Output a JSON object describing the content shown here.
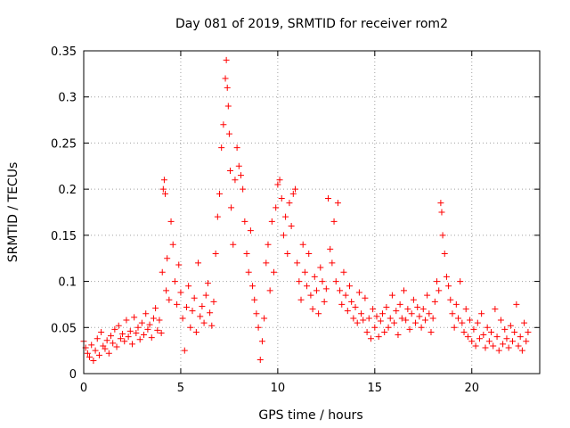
{
  "chart_data": {
    "type": "scatter",
    "title": "Day 081 of 2019, SRMTID for receiver rom2",
    "xlabel": "GPS time / hours",
    "ylabel": "SRMTID / TECUs",
    "xlim": [
      0,
      23.5
    ],
    "ylim": [
      0,
      0.35
    ],
    "xticks": [
      0,
      5,
      10,
      15,
      20
    ],
    "xtick_labels": [
      "0",
      "5",
      "10",
      "15",
      "20"
    ],
    "yticks": [
      0,
      0.05,
      0.1,
      0.15,
      0.2,
      0.25,
      0.3,
      0.35
    ],
    "ytick_labels": [
      "0",
      "0.05",
      "0.1",
      "0.15",
      "0.2",
      "0.25",
      "0.3",
      "0.35"
    ],
    "grid": true,
    "marker": "+",
    "marker_color": "#ff0000",
    "series": [
      {
        "name": "SRMTID",
        "points": [
          [
            0.0,
            0.035
          ],
          [
            0.1,
            0.028
          ],
          [
            0.2,
            0.022
          ],
          [
            0.3,
            0.018
          ],
          [
            0.4,
            0.031
          ],
          [
            0.5,
            0.014
          ],
          [
            0.6,
            0.025
          ],
          [
            0.7,
            0.038
          ],
          [
            0.8,
            0.02
          ],
          [
            0.9,
            0.045
          ],
          [
            1.0,
            0.03
          ],
          [
            1.1,
            0.027
          ],
          [
            1.2,
            0.036
          ],
          [
            1.3,
            0.022
          ],
          [
            1.4,
            0.041
          ],
          [
            1.5,
            0.033
          ],
          [
            1.6,
            0.048
          ],
          [
            1.7,
            0.029
          ],
          [
            1.8,
            0.052
          ],
          [
            1.9,
            0.038
          ],
          [
            2.0,
            0.043
          ],
          [
            2.1,
            0.035
          ],
          [
            2.2,
            0.058
          ],
          [
            2.3,
            0.04
          ],
          [
            2.4,
            0.046
          ],
          [
            2.5,
            0.032
          ],
          [
            2.6,
            0.061
          ],
          [
            2.7,
            0.044
          ],
          [
            2.8,
            0.05
          ],
          [
            2.9,
            0.037
          ],
          [
            3.0,
            0.055
          ],
          [
            3.1,
            0.042
          ],
          [
            3.2,
            0.065
          ],
          [
            3.3,
            0.048
          ],
          [
            3.4,
            0.053
          ],
          [
            3.5,
            0.039
          ],
          [
            3.6,
            0.06
          ],
          [
            3.7,
            0.071
          ],
          [
            3.8,
            0.047
          ],
          [
            3.9,
            0.058
          ],
          [
            4.0,
            0.044
          ],
          [
            4.05,
            0.11
          ],
          [
            4.1,
            0.2
          ],
          [
            4.15,
            0.21
          ],
          [
            4.2,
            0.195
          ],
          [
            4.25,
            0.09
          ],
          [
            4.3,
            0.125
          ],
          [
            4.4,
            0.08
          ],
          [
            4.5,
            0.165
          ],
          [
            4.6,
            0.14
          ],
          [
            4.7,
            0.1
          ],
          [
            4.8,
            0.075
          ],
          [
            4.9,
            0.118
          ],
          [
            5.0,
            0.088
          ],
          [
            5.1,
            0.06
          ],
          [
            5.2,
            0.025
          ],
          [
            5.3,
            0.072
          ],
          [
            5.4,
            0.095
          ],
          [
            5.5,
            0.05
          ],
          [
            5.6,
            0.068
          ],
          [
            5.7,
            0.082
          ],
          [
            5.8,
            0.045
          ],
          [
            5.9,
            0.12
          ],
          [
            6.0,
            0.062
          ],
          [
            6.1,
            0.073
          ],
          [
            6.2,
            0.055
          ],
          [
            6.3,
            0.085
          ],
          [
            6.4,
            0.098
          ],
          [
            6.5,
            0.066
          ],
          [
            6.6,
            0.052
          ],
          [
            6.7,
            0.078
          ],
          [
            6.8,
            0.13
          ],
          [
            6.9,
            0.17
          ],
          [
            7.0,
            0.195
          ],
          [
            7.1,
            0.245
          ],
          [
            7.2,
            0.27
          ],
          [
            7.3,
            0.32
          ],
          [
            7.35,
            0.34
          ],
          [
            7.4,
            0.31
          ],
          [
            7.45,
            0.29
          ],
          [
            7.5,
            0.26
          ],
          [
            7.55,
            0.22
          ],
          [
            7.6,
            0.18
          ],
          [
            7.7,
            0.14
          ],
          [
            7.8,
            0.21
          ],
          [
            7.9,
            0.245
          ],
          [
            8.0,
            0.225
          ],
          [
            8.1,
            0.215
          ],
          [
            8.2,
            0.2
          ],
          [
            8.3,
            0.165
          ],
          [
            8.4,
            0.13
          ],
          [
            8.5,
            0.11
          ],
          [
            8.6,
            0.155
          ],
          [
            8.7,
            0.095
          ],
          [
            8.8,
            0.08
          ],
          [
            8.9,
            0.065
          ],
          [
            9.0,
            0.05
          ],
          [
            9.1,
            0.015
          ],
          [
            9.2,
            0.035
          ],
          [
            9.3,
            0.06
          ],
          [
            9.4,
            0.12
          ],
          [
            9.5,
            0.14
          ],
          [
            9.6,
            0.09
          ],
          [
            9.7,
            0.165
          ],
          [
            9.8,
            0.11
          ],
          [
            9.9,
            0.18
          ],
          [
            10.0,
            0.205
          ],
          [
            10.1,
            0.21
          ],
          [
            10.2,
            0.19
          ],
          [
            10.3,
            0.15
          ],
          [
            10.4,
            0.17
          ],
          [
            10.5,
            0.13
          ],
          [
            10.6,
            0.185
          ],
          [
            10.7,
            0.16
          ],
          [
            10.8,
            0.195
          ],
          [
            10.9,
            0.2
          ],
          [
            11.0,
            0.12
          ],
          [
            11.1,
            0.1
          ],
          [
            11.2,
            0.08
          ],
          [
            11.3,
            0.14
          ],
          [
            11.4,
            0.11
          ],
          [
            11.5,
            0.095
          ],
          [
            11.6,
            0.13
          ],
          [
            11.7,
            0.085
          ],
          [
            11.8,
            0.07
          ],
          [
            11.9,
            0.105
          ],
          [
            12.0,
            0.09
          ],
          [
            12.1,
            0.065
          ],
          [
            12.2,
            0.115
          ],
          [
            12.3,
            0.1
          ],
          [
            12.4,
            0.078
          ],
          [
            12.5,
            0.092
          ],
          [
            12.6,
            0.19
          ],
          [
            12.7,
            0.135
          ],
          [
            12.8,
            0.12
          ],
          [
            12.9,
            0.165
          ],
          [
            13.0,
            0.1
          ],
          [
            13.1,
            0.185
          ],
          [
            13.2,
            0.09
          ],
          [
            13.3,
            0.075
          ],
          [
            13.4,
            0.11
          ],
          [
            13.5,
            0.085
          ],
          [
            13.6,
            0.068
          ],
          [
            13.7,
            0.095
          ],
          [
            13.8,
            0.078
          ],
          [
            13.9,
            0.06
          ],
          [
            14.0,
            0.072
          ],
          [
            14.1,
            0.055
          ],
          [
            14.2,
            0.088
          ],
          [
            14.3,
            0.065
          ],
          [
            14.4,
            0.058
          ],
          [
            14.5,
            0.082
          ],
          [
            14.6,
            0.045
          ],
          [
            14.7,
            0.06
          ],
          [
            14.8,
            0.038
          ],
          [
            14.9,
            0.07
          ],
          [
            15.0,
            0.05
          ],
          [
            15.1,
            0.062
          ],
          [
            15.2,
            0.04
          ],
          [
            15.3,
            0.057
          ],
          [
            15.4,
            0.065
          ],
          [
            15.5,
            0.045
          ],
          [
            15.6,
            0.072
          ],
          [
            15.7,
            0.05
          ],
          [
            15.8,
            0.06
          ],
          [
            15.9,
            0.085
          ],
          [
            16.0,
            0.055
          ],
          [
            16.1,
            0.068
          ],
          [
            16.2,
            0.042
          ],
          [
            16.3,
            0.075
          ],
          [
            16.4,
            0.06
          ],
          [
            16.5,
            0.09
          ],
          [
            16.6,
            0.058
          ],
          [
            16.7,
            0.07
          ],
          [
            16.8,
            0.048
          ],
          [
            16.9,
            0.065
          ],
          [
            17.0,
            0.08
          ],
          [
            17.1,
            0.055
          ],
          [
            17.2,
            0.072
          ],
          [
            17.3,
            0.062
          ],
          [
            17.4,
            0.05
          ],
          [
            17.5,
            0.07
          ],
          [
            17.6,
            0.058
          ],
          [
            17.7,
            0.085
          ],
          [
            17.8,
            0.065
          ],
          [
            17.9,
            0.045
          ],
          [
            18.0,
            0.06
          ],
          [
            18.1,
            0.078
          ],
          [
            18.2,
            0.1
          ],
          [
            18.3,
            0.09
          ],
          [
            18.4,
            0.185
          ],
          [
            18.45,
            0.175
          ],
          [
            18.5,
            0.15
          ],
          [
            18.6,
            0.13
          ],
          [
            18.7,
            0.105
          ],
          [
            18.8,
            0.095
          ],
          [
            18.9,
            0.08
          ],
          [
            19.0,
            0.065
          ],
          [
            19.1,
            0.05
          ],
          [
            19.2,
            0.075
          ],
          [
            19.3,
            0.06
          ],
          [
            19.4,
            0.1
          ],
          [
            19.5,
            0.055
          ],
          [
            19.6,
            0.045
          ],
          [
            19.7,
            0.07
          ],
          [
            19.8,
            0.04
          ],
          [
            19.9,
            0.058
          ],
          [
            20.0,
            0.035
          ],
          [
            20.1,
            0.048
          ],
          [
            20.2,
            0.03
          ],
          [
            20.3,
            0.055
          ],
          [
            20.4,
            0.038
          ],
          [
            20.5,
            0.065
          ],
          [
            20.6,
            0.042
          ],
          [
            20.7,
            0.028
          ],
          [
            20.8,
            0.05
          ],
          [
            20.9,
            0.035
          ],
          [
            21.0,
            0.045
          ],
          [
            21.1,
            0.03
          ],
          [
            21.2,
            0.07
          ],
          [
            21.3,
            0.04
          ],
          [
            21.4,
            0.025
          ],
          [
            21.5,
            0.058
          ],
          [
            21.6,
            0.032
          ],
          [
            21.7,
            0.048
          ],
          [
            21.8,
            0.038
          ],
          [
            21.9,
            0.028
          ],
          [
            22.0,
            0.052
          ],
          [
            22.1,
            0.035
          ],
          [
            22.2,
            0.045
          ],
          [
            22.3,
            0.075
          ],
          [
            22.4,
            0.03
          ],
          [
            22.5,
            0.04
          ],
          [
            22.6,
            0.025
          ],
          [
            22.7,
            0.055
          ],
          [
            22.8,
            0.035
          ],
          [
            22.9,
            0.045
          ]
        ]
      }
    ]
  }
}
